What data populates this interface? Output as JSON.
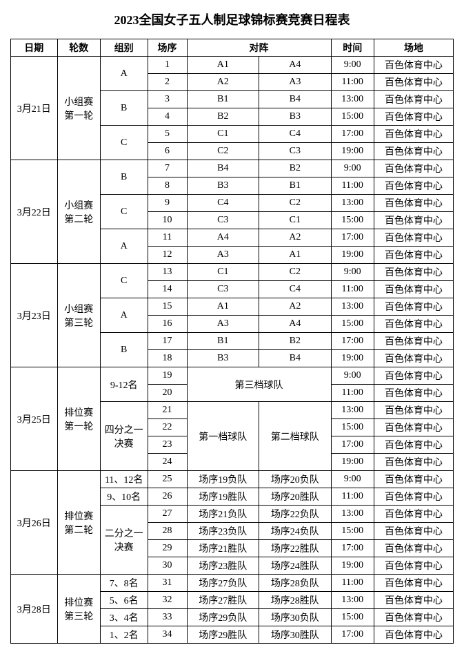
{
  "title": "2023全国女子五人制足球锦标赛竞赛日程表",
  "headers": {
    "date": "日期",
    "round": "轮数",
    "group": "组别",
    "seq": "场序",
    "match": "对阵",
    "time": "时间",
    "venue": "场地"
  },
  "days": [
    {
      "date": "3月21日",
      "round": "小组赛\n第一轮",
      "groups": [
        {
          "group": "A",
          "rows": [
            {
              "seq": "1",
              "t1": "A1",
              "t2": "A4",
              "time": "9:00",
              "venue": "百色体育中心"
            },
            {
              "seq": "2",
              "t1": "A2",
              "t2": "A3",
              "time": "11:00",
              "venue": "百色体育中心"
            }
          ]
        },
        {
          "group": "B",
          "rows": [
            {
              "seq": "3",
              "t1": "B1",
              "t2": "B4",
              "time": "13:00",
              "venue": "百色体育中心"
            },
            {
              "seq": "4",
              "t1": "B2",
              "t2": "B3",
              "time": "15:00",
              "venue": "百色体育中心"
            }
          ]
        },
        {
          "group": "C",
          "rows": [
            {
              "seq": "5",
              "t1": "C1",
              "t2": "C4",
              "time": "17:00",
              "venue": "百色体育中心"
            },
            {
              "seq": "6",
              "t1": "C2",
              "t2": "C3",
              "time": "19:00",
              "venue": "百色体育中心"
            }
          ]
        }
      ]
    },
    {
      "date": "3月22日",
      "round": "小组赛\n第二轮",
      "groups": [
        {
          "group": "B",
          "rows": [
            {
              "seq": "7",
              "t1": "B4",
              "t2": "B2",
              "time": "9:00",
              "venue": "百色体育中心"
            },
            {
              "seq": "8",
              "t1": "B3",
              "t2": "B1",
              "time": "11:00",
              "venue": "百色体育中心"
            }
          ]
        },
        {
          "group": "C",
          "rows": [
            {
              "seq": "9",
              "t1": "C4",
              "t2": "C2",
              "time": "13:00",
              "venue": "百色体育中心"
            },
            {
              "seq": "10",
              "t1": "C3",
              "t2": "C1",
              "time": "15:00",
              "venue": "百色体育中心"
            }
          ]
        },
        {
          "group": "A",
          "rows": [
            {
              "seq": "11",
              "t1": "A4",
              "t2": "A2",
              "time": "17:00",
              "venue": "百色体育中心"
            },
            {
              "seq": "12",
              "t1": "A3",
              "t2": "A1",
              "time": "19:00",
              "venue": "百色体育中心"
            }
          ]
        }
      ]
    },
    {
      "date": "3月23日",
      "round": "小组赛\n第三轮",
      "groups": [
        {
          "group": "C",
          "rows": [
            {
              "seq": "13",
              "t1": "C1",
              "t2": "C2",
              "time": "9:00",
              "venue": "百色体育中心"
            },
            {
              "seq": "14",
              "t1": "C3",
              "t2": "C4",
              "time": "11:00",
              "venue": "百色体育中心"
            }
          ]
        },
        {
          "group": "A",
          "rows": [
            {
              "seq": "15",
              "t1": "A1",
              "t2": "A2",
              "time": "13:00",
              "venue": "百色体育中心"
            },
            {
              "seq": "16",
              "t1": "A3",
              "t2": "A4",
              "time": "15:00",
              "venue": "百色体育中心"
            }
          ]
        },
        {
          "group": "B",
          "rows": [
            {
              "seq": "17",
              "t1": "B1",
              "t2": "B2",
              "time": "17:00",
              "venue": "百色体育中心"
            },
            {
              "seq": "18",
              "t1": "B3",
              "t2": "B4",
              "time": "19:00",
              "venue": "百色体育中心"
            }
          ]
        }
      ]
    }
  ],
  "day25": {
    "date": "3月25日",
    "round": "排位赛\n第一轮",
    "g1": "9-12名",
    "g1_match": "第三档球队",
    "g1_rows": [
      {
        "seq": "19",
        "time": "9:00",
        "venue": "百色体育中心"
      },
      {
        "seq": "20",
        "time": "11:00",
        "venue": "百色体育中心"
      }
    ],
    "g2": "四分之一\n决赛",
    "g2_t1": "第一档球队",
    "g2_t2": "第二档球队",
    "g2_rows": [
      {
        "seq": "21",
        "time": "13:00",
        "venue": "百色体育中心"
      },
      {
        "seq": "22",
        "time": "15:00",
        "venue": "百色体育中心"
      },
      {
        "seq": "23",
        "time": "17:00",
        "venue": "百色体育中心"
      },
      {
        "seq": "24",
        "time": "19:00",
        "venue": "百色体育中心"
      }
    ]
  },
  "day26": {
    "date": "3月26日",
    "round": "排位赛\n第二轮",
    "rows1": [
      {
        "group": "11、12名",
        "seq": "25",
        "t1": "场序19负队",
        "t2": "场序20负队",
        "time": "9:00",
        "venue": "百色体育中心"
      },
      {
        "group": "9、10名",
        "seq": "26",
        "t1": "场序19胜队",
        "t2": "场序20胜队",
        "time": "11:00",
        "venue": "百色体育中心"
      }
    ],
    "g2": "二分之一\n决赛",
    "rows2": [
      {
        "seq": "27",
        "t1": "场序21负队",
        "t2": "场序22负队",
        "time": "13:00",
        "venue": "百色体育中心"
      },
      {
        "seq": "28",
        "t1": "场序23负队",
        "t2": "场序24负队",
        "time": "15:00",
        "venue": "百色体育中心"
      },
      {
        "seq": "29",
        "t1": "场序21胜队",
        "t2": "场序22胜队",
        "time": "17:00",
        "venue": "百色体育中心"
      },
      {
        "seq": "30",
        "t1": "场序23胜队",
        "t2": "场序24胜队",
        "time": "19:00",
        "venue": "百色体育中心"
      }
    ]
  },
  "day28": {
    "date": "3月28日",
    "round": "排位赛\n第三轮",
    "rows": [
      {
        "group": "7、8名",
        "seq": "31",
        "t1": "场序27负队",
        "t2": "场序28负队",
        "time": "11:00",
        "venue": "百色体育中心"
      },
      {
        "group": "5、6名",
        "seq": "32",
        "t1": "场序27胜队",
        "t2": "场序28胜队",
        "time": "13:00",
        "venue": "百色体育中心"
      },
      {
        "group": "3、4名",
        "seq": "33",
        "t1": "场序29负队",
        "t2": "场序30负队",
        "time": "15:00",
        "venue": "百色体育中心"
      },
      {
        "group": "1、2名",
        "seq": "34",
        "t1": "场序29胜队",
        "t2": "场序30胜队",
        "time": "17:00",
        "venue": "百色体育中心"
      }
    ]
  }
}
